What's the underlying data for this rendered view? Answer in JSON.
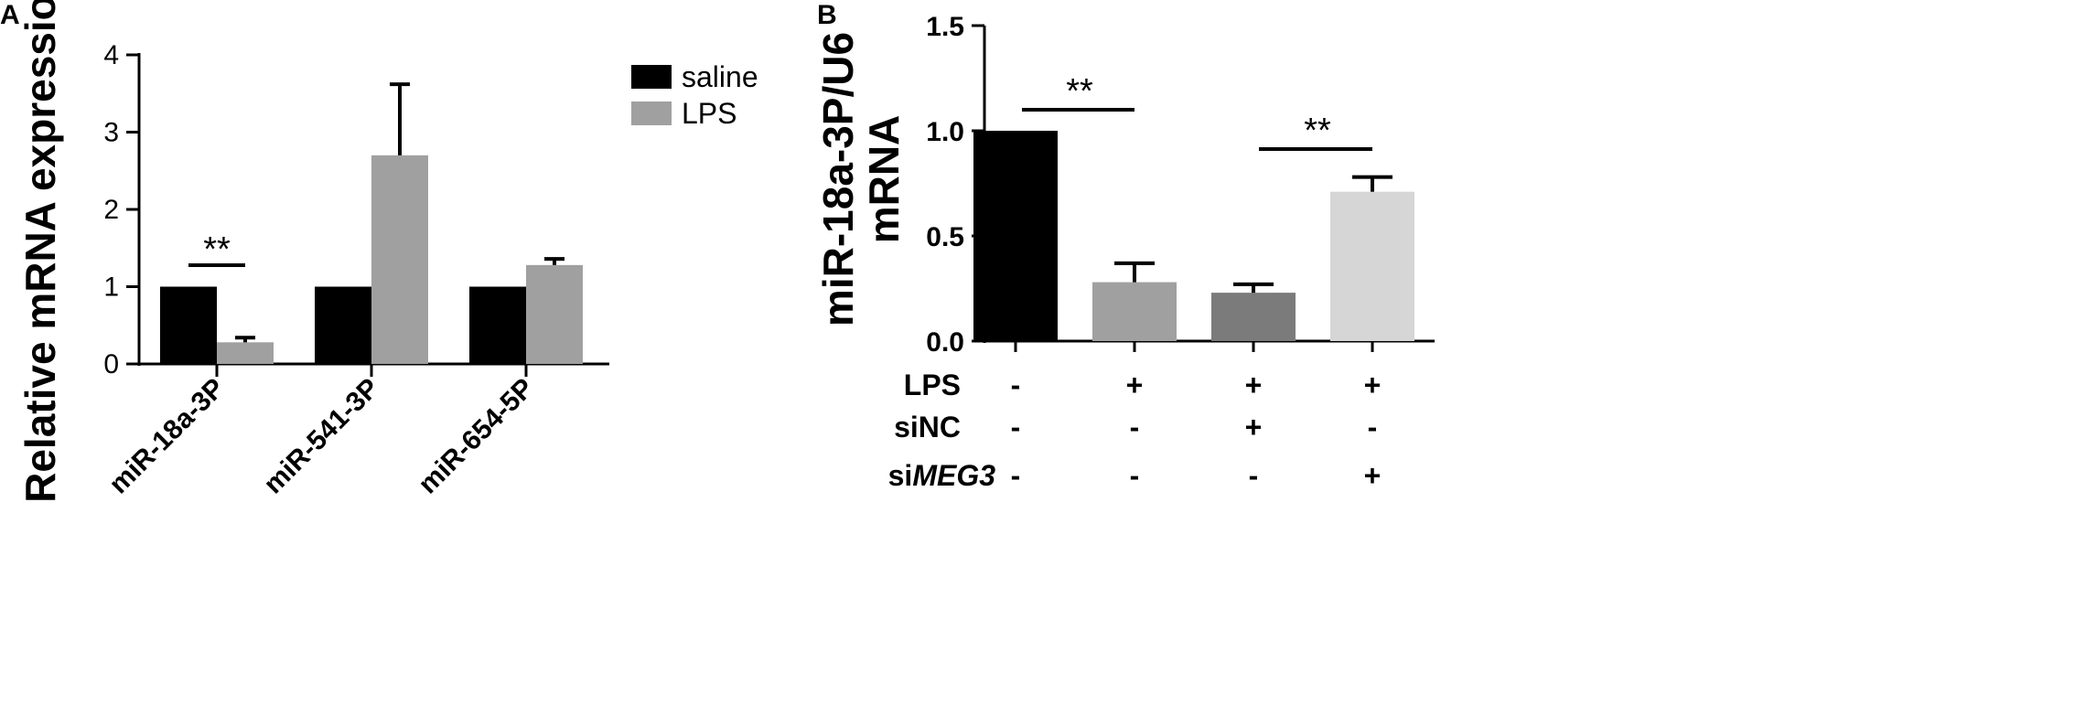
{
  "chart_data": [
    {
      "panel": "A",
      "type": "bar",
      "ylabel": "Relative mRNA expression",
      "ylim": [
        0,
        4
      ],
      "yticks": [
        "0",
        "1",
        "2",
        "3",
        "4"
      ],
      "categories": [
        "miR-18a-3P",
        "miR-541-3P",
        "miR-654-5P"
      ],
      "series": [
        {
          "name": "saline",
          "color": "#000000",
          "values": [
            1.0,
            1.0,
            1.0
          ],
          "errors": [
            0,
            0,
            0
          ]
        },
        {
          "name": "LPS",
          "color": "#a0a0a0",
          "values": [
            0.28,
            2.7,
            1.28
          ],
          "errors": [
            0.06,
            0.92,
            0.08
          ]
        }
      ],
      "legend": {
        "position": "top-right"
      },
      "significance": [
        {
          "label": "**",
          "category": "miR-18a-3P"
        }
      ]
    },
    {
      "panel": "B",
      "type": "bar",
      "ylabel_lines": [
        "miR-18a-3P/U6",
        "mRNA"
      ],
      "ylim": [
        0,
        1.5
      ],
      "yticks": [
        "0.0",
        "0.5",
        "1.0",
        "1.5"
      ],
      "bars": [
        {
          "value": 1.0,
          "error": 0,
          "color": "#000000"
        },
        {
          "value": 0.28,
          "error": 0.09,
          "color": "#a0a0a0"
        },
        {
          "value": 0.23,
          "error": 0.04,
          "color": "#7b7b7b"
        },
        {
          "value": 0.71,
          "error": 0.07,
          "color": "#d6d6d6"
        }
      ],
      "conditions": [
        {
          "label": "LPS",
          "values": [
            "-",
            "+",
            "+",
            "+"
          ]
        },
        {
          "label_prefix": "si",
          "label_italic": "MEG3",
          "label": "siNC",
          "values": [
            "-",
            "-",
            "+",
            "-"
          ]
        },
        {
          "label_prefix": "si",
          "label_italic": "MEG3",
          "values": [
            "-",
            "-",
            "-",
            "+"
          ]
        }
      ],
      "significance": [
        {
          "label": "**",
          "from_bar": 0,
          "to_bar": 1
        },
        {
          "label": "**",
          "from_bar": 2,
          "to_bar": 3
        }
      ]
    }
  ]
}
